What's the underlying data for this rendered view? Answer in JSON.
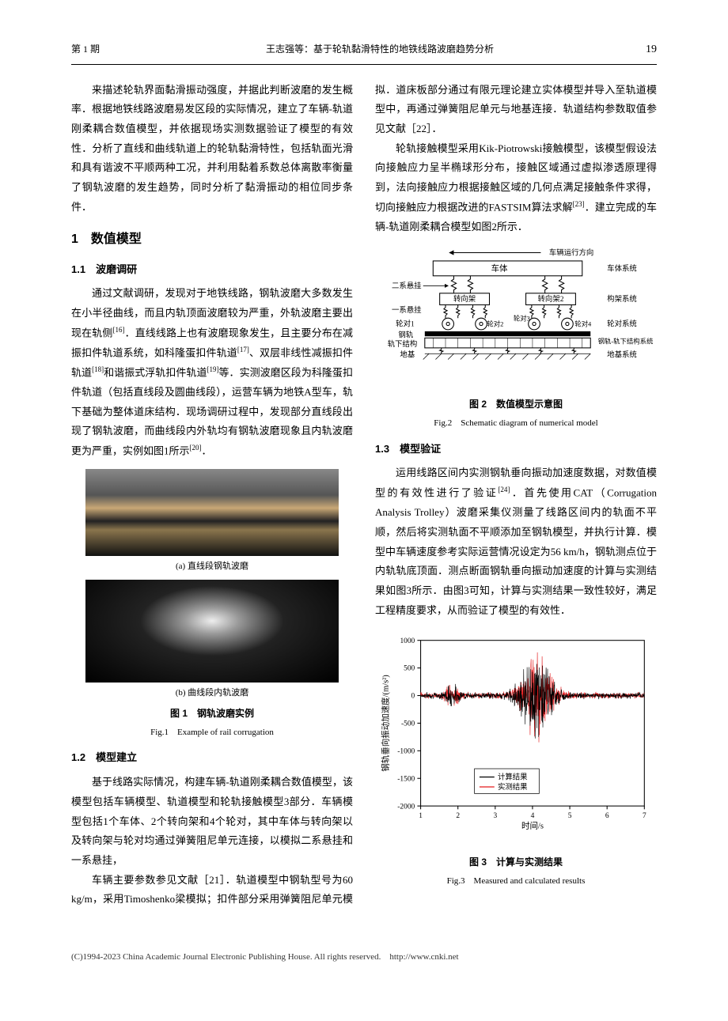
{
  "header": {
    "issue": "第 1 期",
    "running_title": "王志强等：基于轮轨黏滑特性的地铁线路波磨趋势分析",
    "page": "19"
  },
  "body": {
    "p_intro": "来描述轮轨界面黏滑振动强度，并据此判断波磨的发生概率．根据地铁线路波磨易发区段的实际情况，建立了车辆-轨道刚柔耦合数值模型，并依据现场实测数据验证了模型的有效性．分析了直线和曲线轨道上的轮轨黏滑特性，包括轨面光滑和具有谐波不平顺两种工况，并利用黏着系数总体离散率衡量了钢轨波磨的发生趋势，同时分析了黏滑振动的相位同步条件．",
    "s1_title": "1　数值模型",
    "s11_title": "1.1　波磨调研",
    "p11": "通过文献调研，发现对于地铁线路，钢轨波磨大多数发生在小半径曲线，而且内轨顶面波磨较为严重，外轨波磨主要出现在轨侧",
    "p11_cont": "．直线线路上也有波磨现象发生，且主要分布在减振扣件轨道系统，如科隆蛋扣件轨道",
    "p11_b": "、双层非线性减振扣件轨道",
    "p11_c": "和谐振式浮轨扣件轨道",
    "p11_d": "等．实测波磨区段为科隆蛋扣件轨道（包括直线段及圆曲线段），运营车辆为地铁A型车，轨下基础为整体道床结构．现场调研过程中，发现部分直线段出现了钢轨波磨，而曲线段内外轨均有钢轨波磨现象且内轨波磨更为严重，实例如图1所示",
    "p11_e": "．",
    "ref16": "[16]",
    "ref17": "[17]",
    "ref18": "[18]",
    "ref19": "[19]",
    "ref20": "[20]",
    "fig1a_label": "(a) 直线段钢轨波磨",
    "fig1b_label": "(b) 曲线段内轨波磨",
    "fig1_cn": "图 1　钢轨波磨实例",
    "fig1_en": "Fig.1　Example of rail corrugation",
    "s12_title": "1.2　模型建立",
    "p12": "基于线路实际情况，构建车辆-轨道刚柔耦合数值模型，该模型包括车辆模型、轨道模型和轮轨接触模型3部分．车辆模型包括1个车体、2个转向架和4个轮对，其中车体与转向架以及转向架与轮对均通过弹簧阻尼单元连接，以模拟二系悬挂和一系悬挂，",
    "p_col2a": "车辆主要参数参见文献［21］．轨道模型中钢轨型号为60 kg/m，采用Timoshenko梁模拟；扣件部分采用弹簧阻尼单元模拟．道床板部分通过有限元理论建立实体模型并导入至轨道模型中，再通过弹簧阻尼单元与地基连接．轨道结构参数取值参见文献［22］．",
    "p_col2b": "轮轨接触模型采用Kik-Piotrowski接触模型，该模型假设法向接触应力呈半椭球形分布，接触区域通过虚拟渗透原理得到，法向接触应力根据接触区域的几何点满足接触条件求得，切向接触应力根据改进的FASTSIM算法求解",
    "ref23": "[23]",
    "p_col2b_end": "．建立完成的车辆-轨道刚柔耦合模型如图2所示．",
    "fig2_cn": "图 2　数值模型示意图",
    "fig2_en": "Fig.2　Schematic diagram of numerical model",
    "fig2": {
      "top_label": "车辆运行方向",
      "carbody": "车体",
      "carbody_sys": "车体系统",
      "sec_susp": "二系悬挂",
      "bogie": "转向架",
      "bogie2": "转向架2",
      "bogie_sys": "构架系统",
      "pri_susp": "一系悬挂",
      "wheel_l": "轮对1",
      "wheel2": "轮对2",
      "wheel3": "轮对3",
      "wheel4": "轮对4",
      "wheel_sys": "轮对系统",
      "rail": "钢轨",
      "slab": "轨下结构",
      "rail_sys": "钢轨-轨下结构系统",
      "ground": "地基",
      "ground_sys": "地基系统"
    },
    "s13_title": "1.3　模型验证",
    "p13": "运用线路区间内实测钢轨垂向振动加速度数据，对数值模型的有效性进行了验证",
    "ref24": "[24]",
    "p13b": "．首先使用CAT（Corrugation Analysis Trolley）波磨采集仪测量了线路区间内的轨面不平顺，然后将实测轨面不平顺添加至钢轨模型，并执行计算．模型中车辆速度参考实际运营情况设定为56 km/h，钢轨测点位于内轨轨底顶面．测点断面钢轨垂向振动加速度的计算与实测结果如图3所示．由图3可知，计算与实测结果一致性较好，满足工程精度要求，从而验证了模型的有效性．",
    "fig3": {
      "type": "line",
      "ylabel": "钢轨垂向振动加速度/(m/s²)",
      "xlabel": "时间/s",
      "legend1": "计算结果",
      "legend2": "实测结果",
      "ylim": [
        -2000,
        1000
      ],
      "ytick_step": 500,
      "xlim": [
        1,
        7
      ],
      "xticks": [
        1,
        2,
        3,
        4,
        5,
        6,
        7
      ],
      "series1_color": "#000000",
      "series2_color": "#e41a1c",
      "background_color": "#ffffff",
      "grid_color": "#cccccc"
    },
    "fig3_cn": "图 3　计算与实测结果",
    "fig3_en": "Fig.3　Measured and calculated results"
  },
  "footer": "(C)1994-2023 China Academic Journal Electronic Publishing House. All rights reserved.　http://www.cnki.net"
}
